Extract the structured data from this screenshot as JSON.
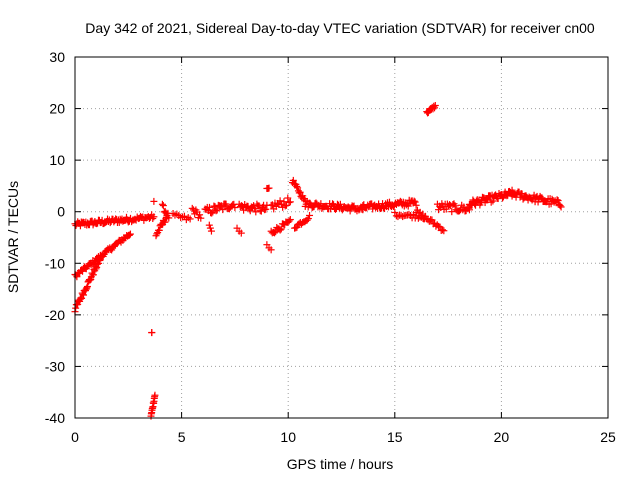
{
  "chart_data": {
    "type": "scatter",
    "title": "Day 342 of 2021, Sidereal Day-to-day VTEC variation (SDTVAR) for receiver cn00",
    "xlabel": "GPS time / hours",
    "ylabel": "SDTVAR / TECUs",
    "xlim": [
      0,
      25
    ],
    "ylim": [
      -40,
      30
    ],
    "xticks": [
      0,
      5,
      10,
      15,
      20,
      25
    ],
    "yticks": [
      -40,
      -30,
      -20,
      -10,
      0,
      10,
      20,
      30
    ],
    "xtick_labels": [
      "0",
      "5",
      "10",
      "15",
      "20",
      "25"
    ],
    "ytick_labels": [
      "-40",
      "-30",
      "-20",
      "-10",
      "0",
      "10",
      "20",
      "30"
    ],
    "grid": true,
    "marker": "+",
    "color": "#ff0000",
    "series": [
      {
        "name": "SDTVAR",
        "segments": [
          {
            "x0": 0.0,
            "x1": 2.5,
            "y0": -2.5,
            "y1": -1.5,
            "n": 60,
            "jitter": 0.5
          },
          {
            "x0": 2.5,
            "x1": 3.7,
            "y0": -1.5,
            "y1": -1.0,
            "n": 24,
            "jitter": 0.5
          },
          {
            "x0": 0.0,
            "x1": 2.6,
            "y0": -12.5,
            "y1": -4.2,
            "n": 60,
            "jitter": 0.4
          },
          {
            "x0": 0.0,
            "x1": 1.2,
            "y0": -19.0,
            "y1": -9.0,
            "n": 40,
            "jitter": 0.5
          },
          {
            "x0": 3.55,
            "x1": 3.75,
            "y0": -40.0,
            "y1": -35.5,
            "n": 14,
            "jitter": 0.3
          },
          {
            "x0": 3.6,
            "x1": 3.6,
            "y0": -23.5,
            "y1": -23.5,
            "n": 2,
            "jitter": 0.2
          },
          {
            "x0": 3.7,
            "x1": 3.7,
            "y0": 2.0,
            "y1": 2.0,
            "n": 1,
            "jitter": 0.0
          },
          {
            "x0": 3.8,
            "x1": 4.3,
            "y0": -4.5,
            "y1": -1.0,
            "n": 14,
            "jitter": 0.5
          },
          {
            "x0": 4.1,
            "x1": 4.4,
            "y0": 1.0,
            "y1": -1.0,
            "n": 8,
            "jitter": 0.5
          },
          {
            "x0": 4.6,
            "x1": 5.4,
            "y0": -0.8,
            "y1": -1.5,
            "n": 10,
            "jitter": 0.5
          },
          {
            "x0": 5.5,
            "x1": 5.9,
            "y0": 0.5,
            "y1": -1.0,
            "n": 8,
            "jitter": 0.6
          },
          {
            "x0": 6.1,
            "x1": 7.5,
            "y0": 0.0,
            "y1": 1.5,
            "n": 28,
            "jitter": 0.8
          },
          {
            "x0": 6.3,
            "x1": 6.4,
            "y0": -2.5,
            "y1": -4.0,
            "n": 3,
            "jitter": 0.3
          },
          {
            "x0": 7.6,
            "x1": 7.8,
            "y0": -3.0,
            "y1": -4.0,
            "n": 3,
            "jitter": 0.3
          },
          {
            "x0": 7.7,
            "x1": 9.0,
            "y0": 1.0,
            "y1": 0.5,
            "n": 26,
            "jitter": 0.8
          },
          {
            "x0": 9.0,
            "x1": 9.2,
            "y0": -6.5,
            "y1": -7.5,
            "n": 3,
            "jitter": 0.3
          },
          {
            "x0": 9.0,
            "x1": 9.1,
            "y0": 4.5,
            "y1": 4.5,
            "n": 3,
            "jitter": 0.2
          },
          {
            "x0": 9.2,
            "x1": 10.1,
            "y0": -4.0,
            "y1": -2.0,
            "n": 18,
            "jitter": 0.5
          },
          {
            "x0": 9.2,
            "x1": 10.1,
            "y0": 1.0,
            "y1": 2.0,
            "n": 16,
            "jitter": 0.8
          },
          {
            "x0": 10.2,
            "x1": 10.8,
            "y0": 6.0,
            "y1": 2.0,
            "n": 16,
            "jitter": 0.4
          },
          {
            "x0": 10.3,
            "x1": 11.0,
            "y0": -3.0,
            "y1": -1.0,
            "n": 14,
            "jitter": 0.4
          },
          {
            "x0": 10.8,
            "x1": 13.5,
            "y0": 1.5,
            "y1": 0.5,
            "n": 60,
            "jitter": 0.6
          },
          {
            "x0": 13.5,
            "x1": 16.0,
            "y0": 0.8,
            "y1": 1.8,
            "n": 55,
            "jitter": 0.6
          },
          {
            "x0": 15.0,
            "x1": 16.4,
            "y0": -0.5,
            "y1": -1.0,
            "n": 20,
            "jitter": 0.4
          },
          {
            "x0": 16.0,
            "x1": 17.3,
            "y0": 0.0,
            "y1": -3.5,
            "n": 22,
            "jitter": 0.5
          },
          {
            "x0": 16.5,
            "x1": 16.9,
            "y0": 19.2,
            "y1": 20.5,
            "n": 12,
            "jitter": 0.3
          },
          {
            "x0": 17.0,
            "x1": 18.5,
            "y0": 1.0,
            "y1": 0.5,
            "n": 30,
            "jitter": 0.8
          },
          {
            "x0": 18.5,
            "x1": 20.5,
            "y0": 1.5,
            "y1": 3.5,
            "n": 50,
            "jitter": 0.7
          },
          {
            "x0": 20.5,
            "x1": 22.8,
            "y0": 3.5,
            "y1": 1.5,
            "n": 50,
            "jitter": 0.7
          }
        ]
      }
    ]
  }
}
